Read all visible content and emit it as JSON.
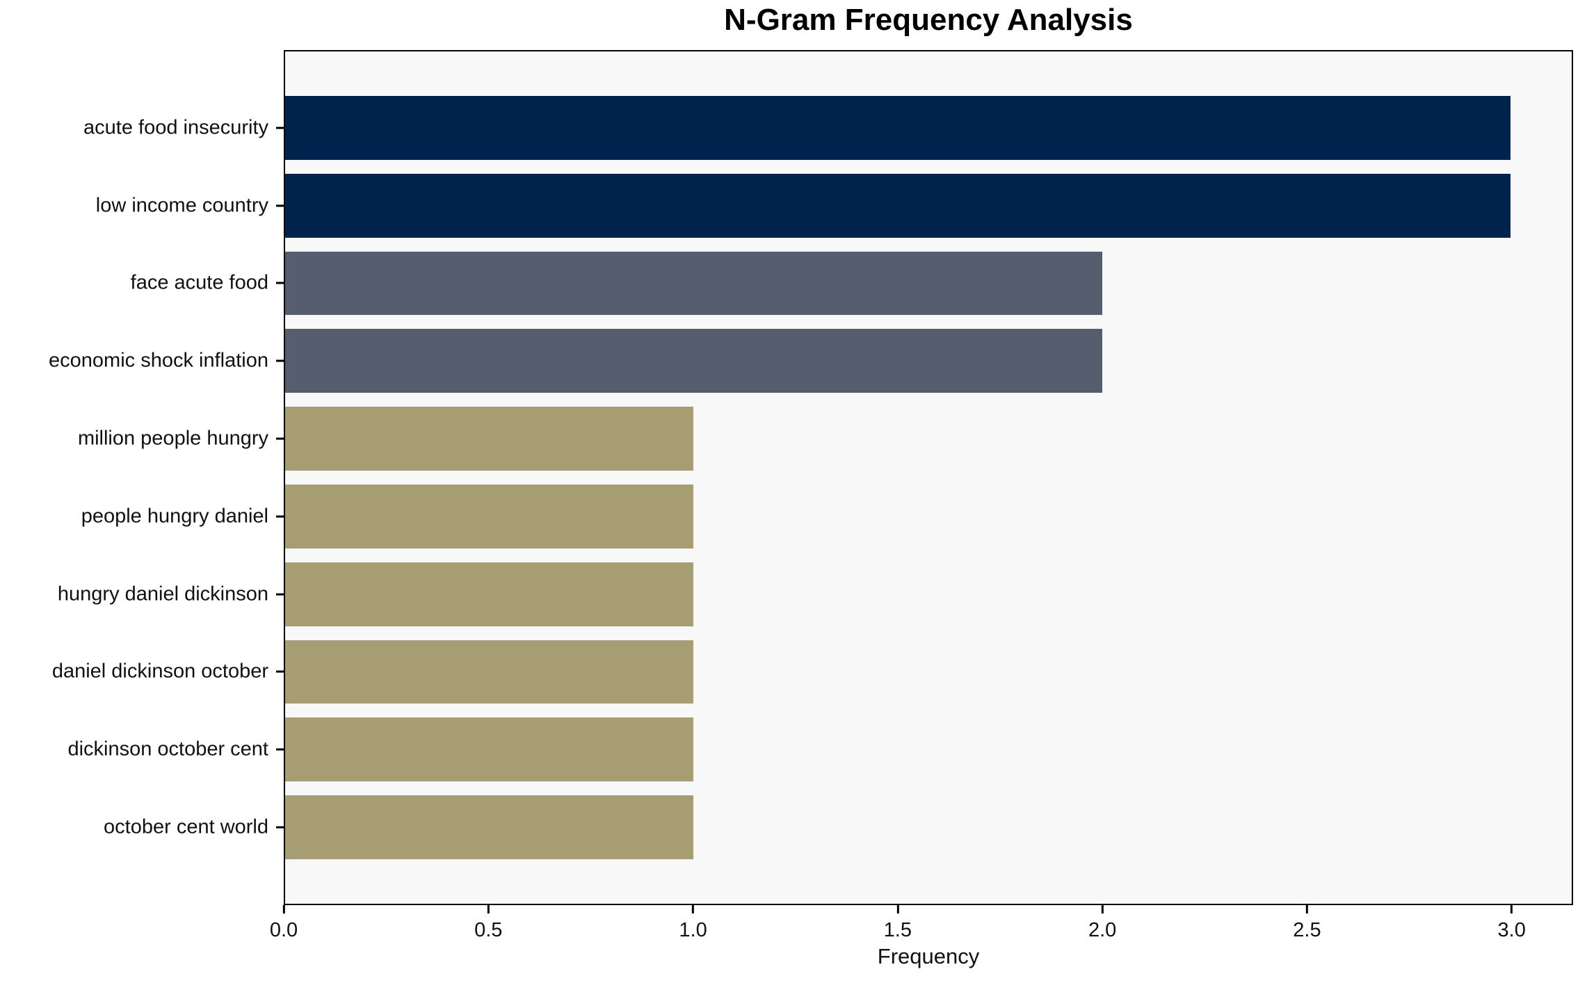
{
  "chart_data": {
    "type": "bar",
    "orientation": "horizontal",
    "title": "N-Gram Frequency Analysis",
    "xlabel": "Frequency",
    "ylabel": "",
    "categories": [
      "acute food insecurity",
      "low income country",
      "face acute food",
      "economic shock inflation",
      "million people hungry",
      "people hungry daniel",
      "hungry daniel dickinson",
      "daniel dickinson october",
      "dickinson october cent",
      "october cent world"
    ],
    "values": [
      3,
      3,
      2,
      2,
      1,
      1,
      1,
      1,
      1,
      1
    ],
    "bar_colors": [
      "#00234d",
      "#00234d",
      "#565d6e",
      "#565d6e",
      "#a69d72",
      "#a69d72",
      "#a69d72",
      "#a69d72",
      "#a69d72",
      "#a69d72"
    ],
    "xlim": [
      0,
      3.15
    ],
    "x_ticks": [
      {
        "value": 0,
        "label": "0.0"
      },
      {
        "value": 0.5,
        "label": "0.5"
      },
      {
        "value": 1,
        "label": "1.0"
      },
      {
        "value": 1.5,
        "label": "1.5"
      },
      {
        "value": 2,
        "label": "2.0"
      },
      {
        "value": 2.5,
        "label": "2.5"
      },
      {
        "value": 3,
        "label": "3.0"
      }
    ],
    "grid": false,
    "legend_position": "none",
    "plot_bg": "#f8f8f8",
    "figure_bg": "#ffffff",
    "spine_color": "#000000"
  }
}
